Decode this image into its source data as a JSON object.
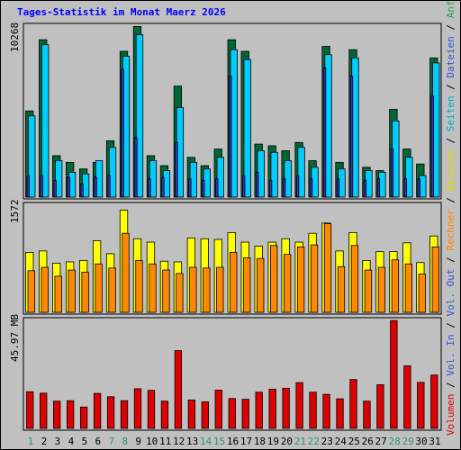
{
  "chart_data": {
    "title": "Tages-Statistik im Monat Maerz 2026",
    "type": "bar",
    "categories": [
      "1",
      "2",
      "3",
      "4",
      "5",
      "6",
      "7",
      "8",
      "9",
      "10",
      "11",
      "12",
      "13",
      "14",
      "15",
      "16",
      "17",
      "18",
      "19",
      "20",
      "21",
      "22",
      "23",
      "24",
      "25",
      "26",
      "27",
      "28",
      "29",
      "30",
      "31"
    ],
    "weekend_days": [
      "1",
      "7",
      "8",
      "14",
      "15",
      "21",
      "22",
      "28",
      "29"
    ],
    "panels": {
      "top": {
        "scale_label": "10268",
        "ymax": 10268,
        "series": [
          {
            "name": "Anfragen",
            "color": "#006633",
            "values": [
              5200,
              9500,
              2500,
              2100,
              1700,
              2100,
              3400,
              8800,
              10300,
              2500,
              1900,
              6700,
              2400,
              1900,
              2900,
              9500,
              8800,
              3200,
              3100,
              2800,
              3300,
              2200,
              9100,
              2100,
              8900,
              1800,
              1600,
              5300,
              2900,
              2000,
              8400
            ]
          },
          {
            "name": "Dateien",
            "color": "#00ccff",
            "values": [
              4900,
              9200,
              2200,
              1500,
              1400,
              2200,
              3000,
              8500,
              9800,
              2200,
              1600,
              5400,
              2100,
              1700,
              2400,
              8900,
              8300,
              2800,
              2700,
              2200,
              3000,
              1800,
              8600,
              1700,
              8400,
              1600,
              1500,
              4600,
              2400,
              1300,
              8100
            ]
          },
          {
            "name": "Seiten",
            "color": "#3333cc",
            "values": [
              1300,
              1300,
              1000,
              1200,
              800,
              1200,
              1300,
              7700,
              3600,
              1100,
              1200,
              3300,
              1100,
              1000,
              1100,
              7300,
              1300,
              1500,
              1000,
              1100,
              1300,
              1100,
              7800,
              1100,
              7300,
              1000,
              1100,
              2900,
              1100,
              1100,
              6100
            ]
          }
        ]
      },
      "middle": {
        "scale_label": "1572",
        "ymax": 1572,
        "series": [
          {
            "name": "Besuche",
            "color": "#ffff00",
            "values": [
              880,
              900,
              720,
              740,
              760,
              1050,
              860,
              1500,
              1080,
              1030,
              750,
              740,
              1090,
              1080,
              1070,
              1170,
              1030,
              970,
              1030,
              1080,
              1030,
              1160,
              1310,
              900,
              1170,
              760,
              890,
              890,
              1020,
              730,
              1120
            ]
          },
          {
            "name": "Rechner",
            "color": "#ff8800",
            "values": [
              610,
              660,
              530,
              620,
              590,
              710,
              650,
              1160,
              760,
              710,
              620,
              570,
              660,
              650,
              660,
              880,
              800,
              790,
              980,
              850,
              960,
              990,
              1300,
              670,
              980,
              620,
              660,
              770,
              710,
              560,
              960
            ]
          }
        ]
      },
      "bottom": {
        "scale_label": "45.97 MB",
        "ymax": 45.97,
        "series": [
          {
            "name": "Volumen",
            "color": "#dd0000",
            "values": [
              15.6,
              15.0,
              11.6,
              11.8,
              9.1,
              14.9,
              13.5,
              11.8,
              16.9,
              16.2,
              11.6,
              33.1,
              12.1,
              11.3,
              16.3,
              12.7,
              12.4,
              15.4,
              16.7,
              17.1,
              19.5,
              15.4,
              14.5,
              12.6,
              20.8,
              11.6,
              18.6,
              45.9,
              26.6,
              19.6,
              22.7
            ]
          }
        ]
      }
    },
    "legend_right": [
      {
        "text": "Volumen",
        "color": "#dd0000"
      },
      {
        "text": " / ",
        "color": "#000000"
      },
      {
        "text": "Vol. In",
        "color": "#3355cc"
      },
      {
        "text": " / ",
        "color": "#000000"
      },
      {
        "text": "Vol. Out",
        "color": "#3355cc"
      },
      {
        "text": " / ",
        "color": "#000000"
      },
      {
        "text": "Rechner",
        "color": "#ff8800"
      },
      {
        "text": " / ",
        "color": "#000000"
      },
      {
        "text": "Besuche",
        "color": "#dddd00"
      },
      {
        "text": " / ",
        "color": "#000000"
      },
      {
        "text": "Seiten",
        "color": "#00aacc"
      },
      {
        "text": " / ",
        "color": "#000000"
      },
      {
        "text": "Dateien",
        "color": "#3355cc"
      },
      {
        "text": " / ",
        "color": "#000000"
      },
      {
        "text": "Anfragen",
        "color": "#339966"
      }
    ],
    "colors": {
      "title": "#0000ff",
      "weekday_tick": "#000000",
      "weekend_tick": "#339966",
      "plot_background": "#c0c0c0",
      "page_background": "#c0c0c0"
    }
  }
}
